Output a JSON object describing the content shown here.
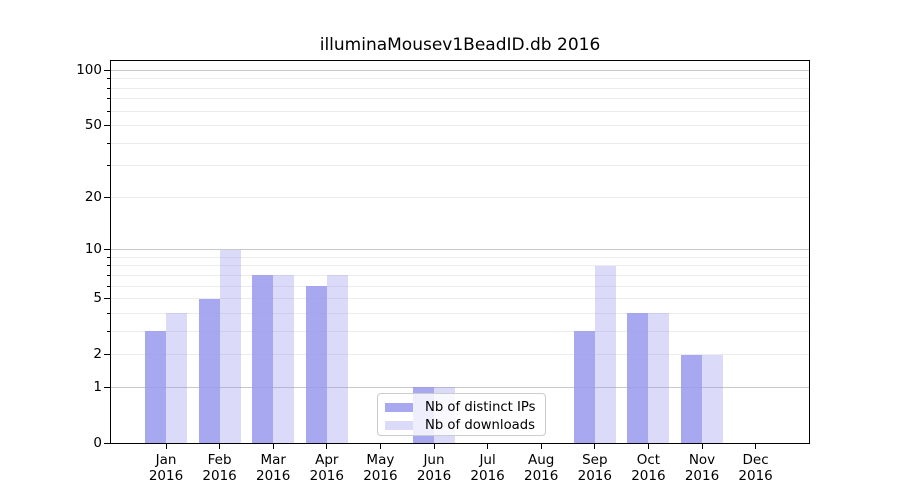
{
  "title": "illuminaMousev1BeadID.db 2016",
  "chart_data": {
    "type": "bar",
    "title": "illuminaMousev1BeadID.db 2016",
    "categories": [
      "Jan",
      "Feb",
      "Mar",
      "Apr",
      "May",
      "Jun",
      "Jul",
      "Aug",
      "Sep",
      "Oct",
      "Nov",
      "Dec"
    ],
    "category_year": "2016",
    "series": [
      {
        "name": "Nb of distinct IPs",
        "values": [
          3,
          5,
          7,
          6,
          0,
          1,
          0,
          0,
          3,
          4,
          2,
          0
        ],
        "color": "#9999ee",
        "opacity": 0.85
      },
      {
        "name": "Nb of downloads",
        "values": [
          4,
          10,
          7,
          7,
          0,
          1,
          0,
          0,
          8,
          4,
          2,
          0
        ],
        "color": "#9999ee",
        "opacity": 0.35
      }
    ],
    "y_axis": {
      "ticks": [
        0,
        1,
        2,
        5,
        10,
        20,
        50,
        100
      ],
      "scale": "log10(1+v)",
      "range_top": 114,
      "major_grid_values": [
        1,
        10,
        100
      ],
      "minor_grid_values": [
        2,
        3,
        4,
        5,
        6,
        7,
        8,
        9,
        20,
        30,
        40,
        50,
        60,
        70,
        80,
        90
      ]
    },
    "grid": {
      "major_color": "#c8c8c8",
      "minor_color": "#ececec",
      "on": true
    },
    "legend": {
      "position": "lower-center",
      "entries": [
        "Nb of distinct IPs",
        "Nb of downloads"
      ]
    },
    "xlabel": "",
    "ylabel": ""
  }
}
